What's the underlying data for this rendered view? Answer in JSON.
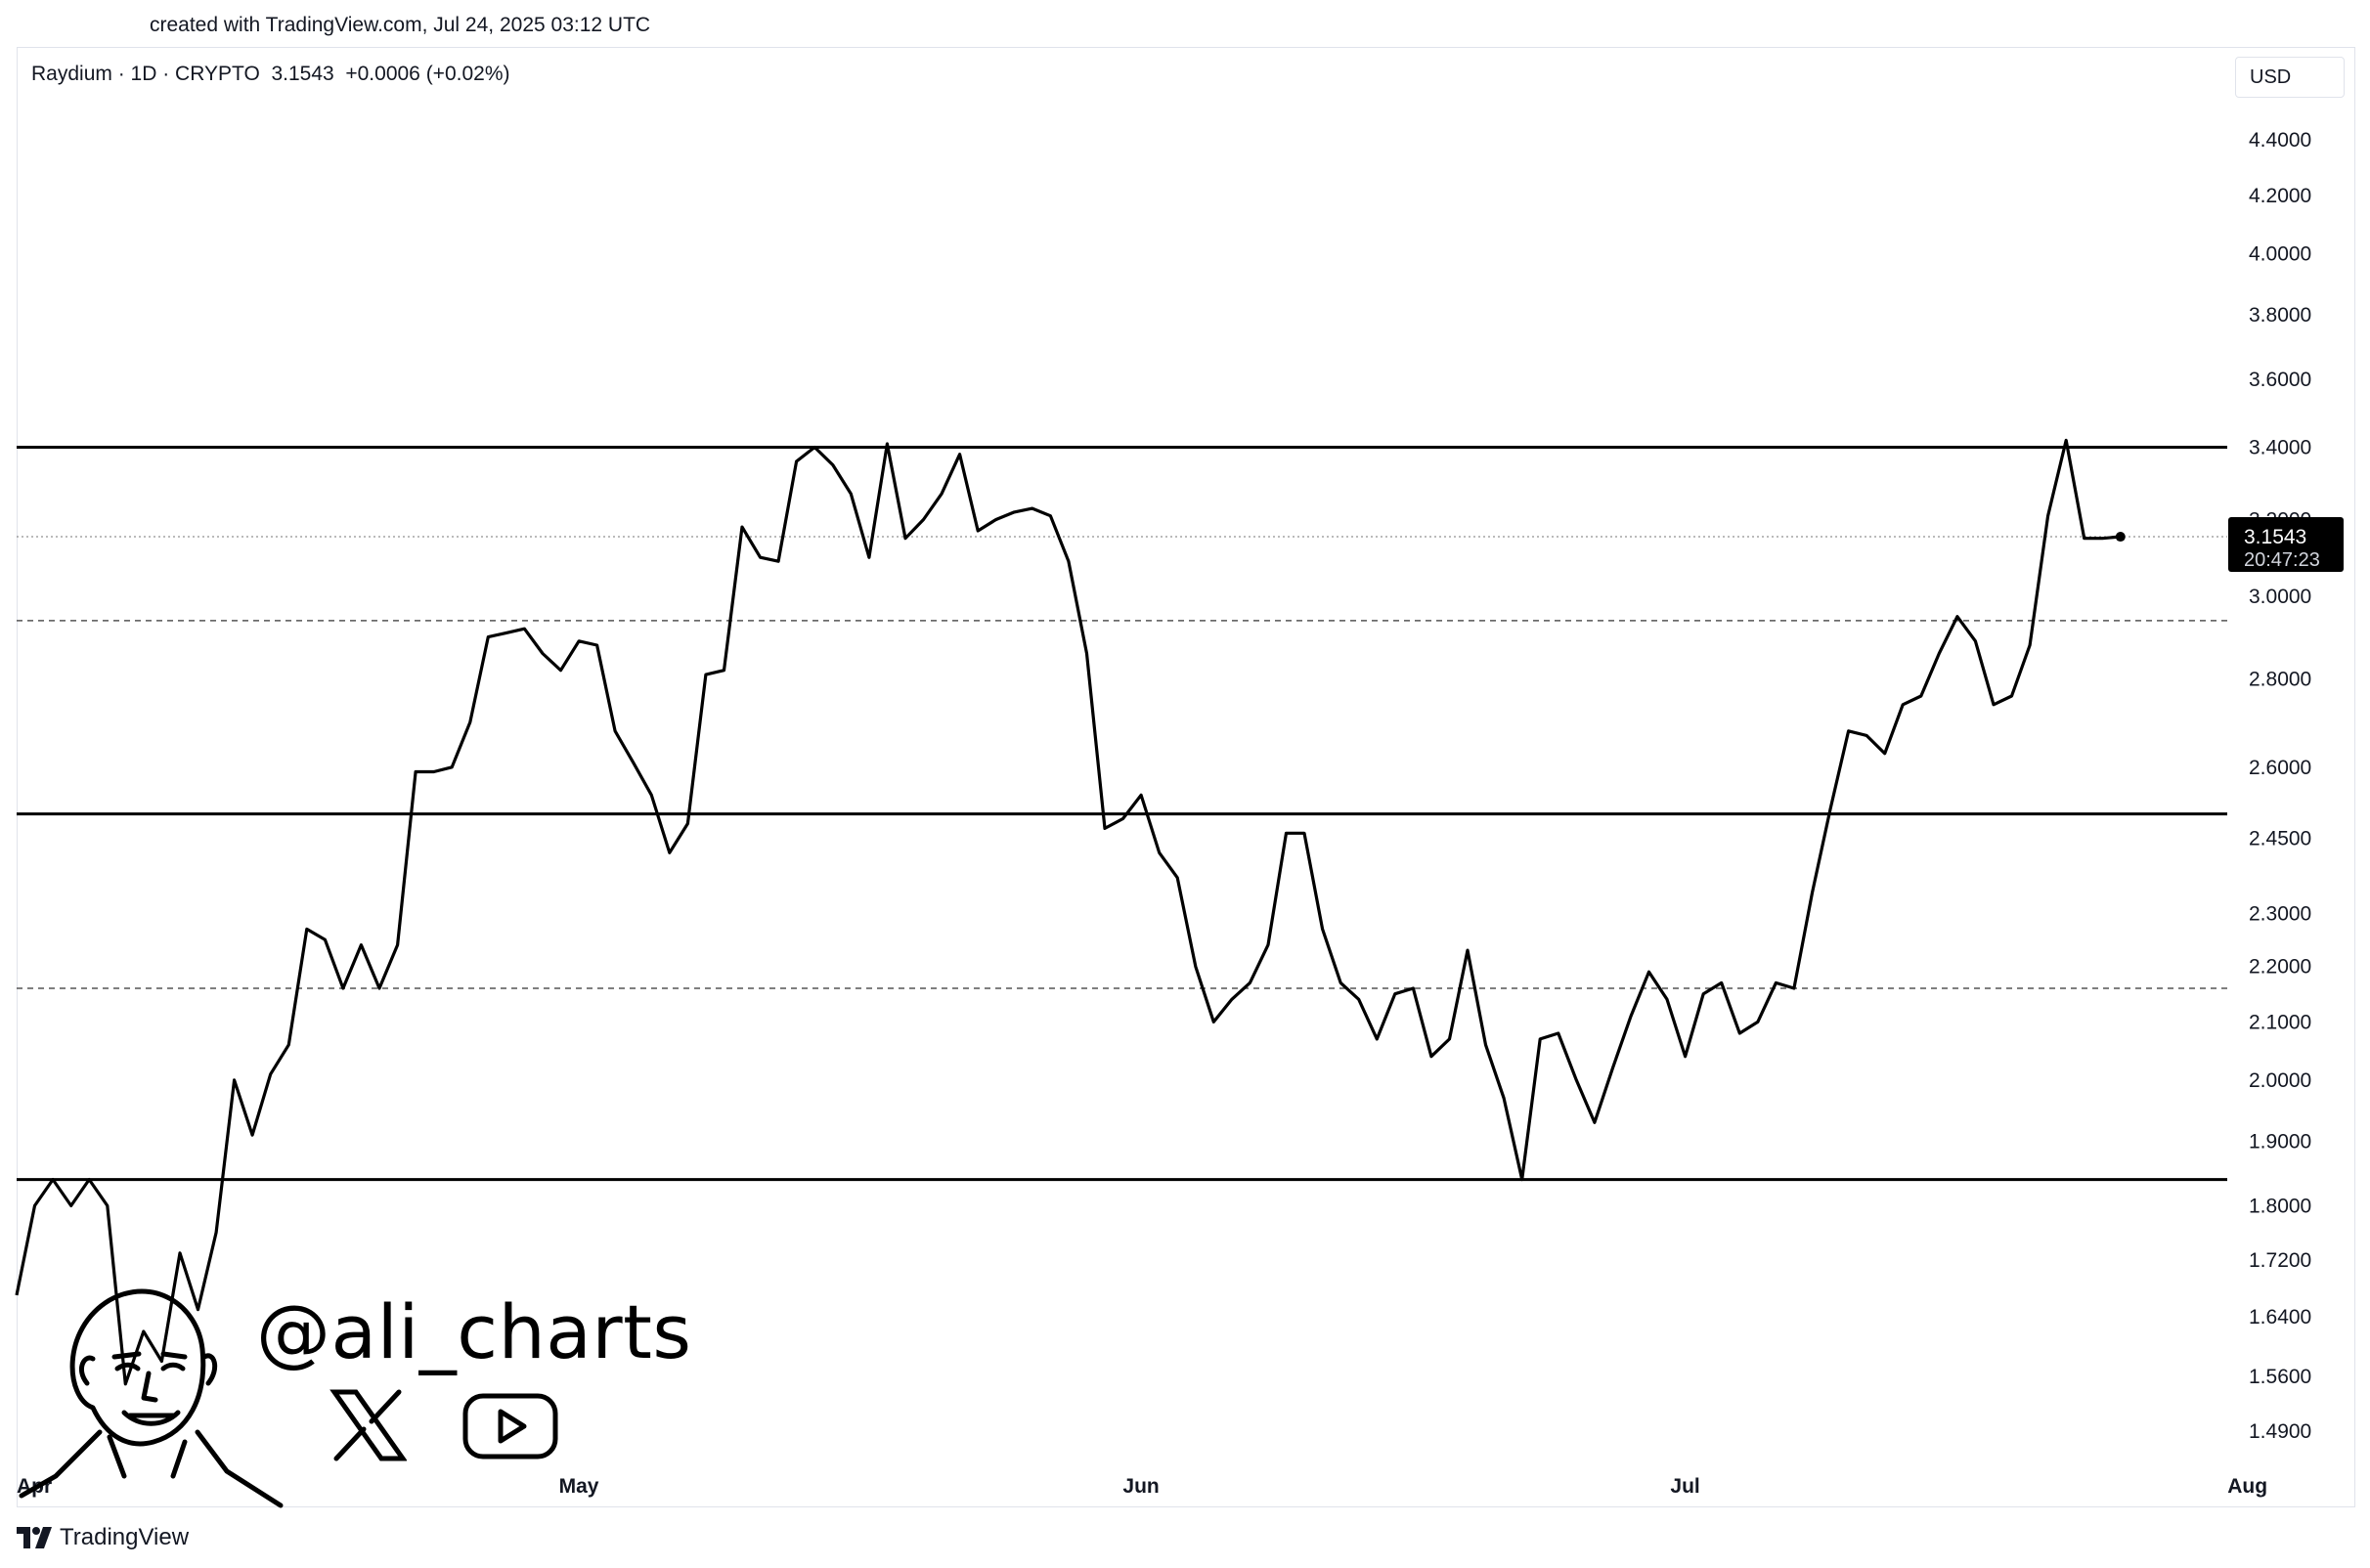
{
  "header": {
    "credit": "created with TradingView.com, Jul 24, 2025 03:12 UTC"
  },
  "legend": {
    "symbol": "Raydium · 1D · CRYPTO",
    "price": "3.1543",
    "change": "+0.0006 (+0.02%)"
  },
  "currency": "USD",
  "last_price_label": {
    "price": "3.1543",
    "countdown": "20:47:23"
  },
  "branding": {
    "logo_text": "TradingView",
    "handle": "@ali_charts",
    "social": [
      "x-icon",
      "youtube-icon"
    ]
  },
  "colors": {
    "line": "#000000",
    "price_label_bg": "#000000",
    "grid": "#e0e3eb"
  },
  "chart_data": {
    "type": "line",
    "scale": "log",
    "title": "",
    "xlabel": "",
    "ylabel": "",
    "ylim": [
      1.45,
      4.6
    ],
    "x_ticks": [
      "Apr",
      "May",
      "Jun",
      "Jul",
      "Aug"
    ],
    "y_ticks": [
      "4.4000",
      "4.2000",
      "4.0000",
      "3.8000",
      "3.6000",
      "3.4000",
      "3.2000",
      "3.0000",
      "2.8000",
      "2.6000",
      "2.4500",
      "2.3000",
      "2.2000",
      "2.1000",
      "2.0000",
      "1.9000",
      "1.8000",
      "1.7200",
      "1.6400",
      "1.5600",
      "1.4900"
    ],
    "grid": false,
    "horizontal_levels": [
      {
        "value": 3.4,
        "style": "solid"
      },
      {
        "value": 2.94,
        "style": "dashed"
      },
      {
        "value": 2.5,
        "style": "solid"
      },
      {
        "value": 2.16,
        "style": "dashed"
      },
      {
        "value": 1.84,
        "style": "solid"
      },
      {
        "value": 3.1543,
        "style": "dotted"
      }
    ],
    "series": [
      {
        "x_start": "2025-03-31",
        "step": "1D",
        "values": [
          1.67,
          1.8,
          1.84,
          1.8,
          1.84,
          1.8,
          1.55,
          1.62,
          1.58,
          1.73,
          1.65,
          1.76,
          2.0,
          1.91,
          2.01,
          2.06,
          2.27,
          2.25,
          2.16,
          2.24,
          2.16,
          2.24,
          2.59,
          2.59,
          2.6,
          2.7,
          2.9,
          2.91,
          2.92,
          2.86,
          2.82,
          2.89,
          2.88,
          2.68,
          2.61,
          2.54,
          2.42,
          2.48,
          2.81,
          2.82,
          3.18,
          3.1,
          3.09,
          3.36,
          3.4,
          3.35,
          3.27,
          3.1,
          3.41,
          3.15,
          3.2,
          3.27,
          3.38,
          3.17,
          3.2,
          3.22,
          3.23,
          3.21,
          3.09,
          2.86,
          2.47,
          2.49,
          2.54,
          2.42,
          2.37,
          2.2,
          2.1,
          2.14,
          2.17,
          2.24,
          2.46,
          2.46,
          2.27,
          2.17,
          2.14,
          2.07,
          2.15,
          2.16,
          2.04,
          2.07,
          2.23,
          2.06,
          1.97,
          1.84,
          2.07,
          2.08,
          2.0,
          1.93,
          2.02,
          2.11,
          2.19,
          2.14,
          2.04,
          2.15,
          2.17,
          2.08,
          2.1,
          2.17,
          2.16,
          2.34,
          2.51,
          2.68,
          2.67,
          2.63,
          2.74,
          2.76,
          2.86,
          2.95,
          2.89,
          2.74,
          2.76,
          2.88,
          3.21,
          3.42,
          3.15,
          3.15,
          3.1543
        ]
      }
    ]
  }
}
